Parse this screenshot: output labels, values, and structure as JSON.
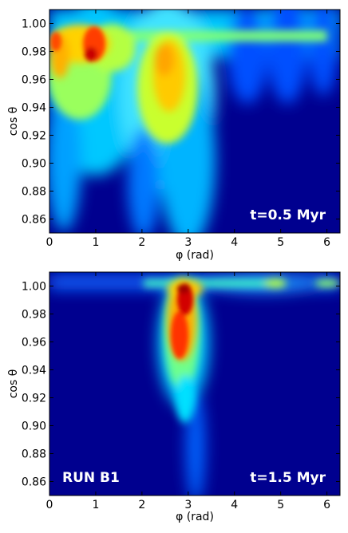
{
  "chart_data": [
    {
      "type": "heatmap",
      "xlabel": "φ (rad)",
      "ylabel": "cos θ",
      "xlim": [
        0,
        6.283
      ],
      "ylim": [
        0.85,
        1.01
      ],
      "xticks": [
        "0",
        "1",
        "2",
        "3",
        "4",
        "5",
        "6"
      ],
      "yticks": [
        "0.86",
        "0.88",
        "0.90",
        "0.92",
        "0.94",
        "0.96",
        "0.98",
        "1.00"
      ],
      "colormap": "jet",
      "annotations": [
        "t=0.5 Myr"
      ],
      "features": [
        {
          "phi": 1.0,
          "cos_theta": 0.985,
          "level": 1.0
        },
        {
          "phi": 0.15,
          "cos_theta": 0.985,
          "level": 0.95
        },
        {
          "phi": 2.6,
          "cos_theta": 0.97,
          "level": 0.6
        },
        {
          "phi": 3.0,
          "cos_theta": 0.96,
          "level": 0.5
        }
      ]
    },
    {
      "type": "heatmap",
      "xlabel": "φ (rad)",
      "ylabel": "cos θ",
      "xlim": [
        0,
        6.283
      ],
      "ylim": [
        0.85,
        1.01
      ],
      "xticks": [
        "0",
        "1",
        "2",
        "3",
        "4",
        "5",
        "6"
      ],
      "yticks": [
        "0.86",
        "0.88",
        "0.90",
        "0.92",
        "0.94",
        "0.96",
        "0.98",
        "1.00"
      ],
      "colormap": "jet",
      "annotations": [
        "RUN B1",
        "t=1.5 Myr"
      ],
      "features": [
        {
          "phi": 2.95,
          "cos_theta": 0.99,
          "level": 1.0
        },
        {
          "phi": 2.8,
          "cos_theta": 0.96,
          "level": 0.85
        },
        {
          "phi": 2.85,
          "cos_theta": 0.92,
          "level": 0.5
        },
        {
          "phi": 4.8,
          "cos_theta": 1.0,
          "level": 0.55
        },
        {
          "phi": 6.0,
          "cos_theta": 1.0,
          "level": 0.5
        }
      ]
    }
  ]
}
